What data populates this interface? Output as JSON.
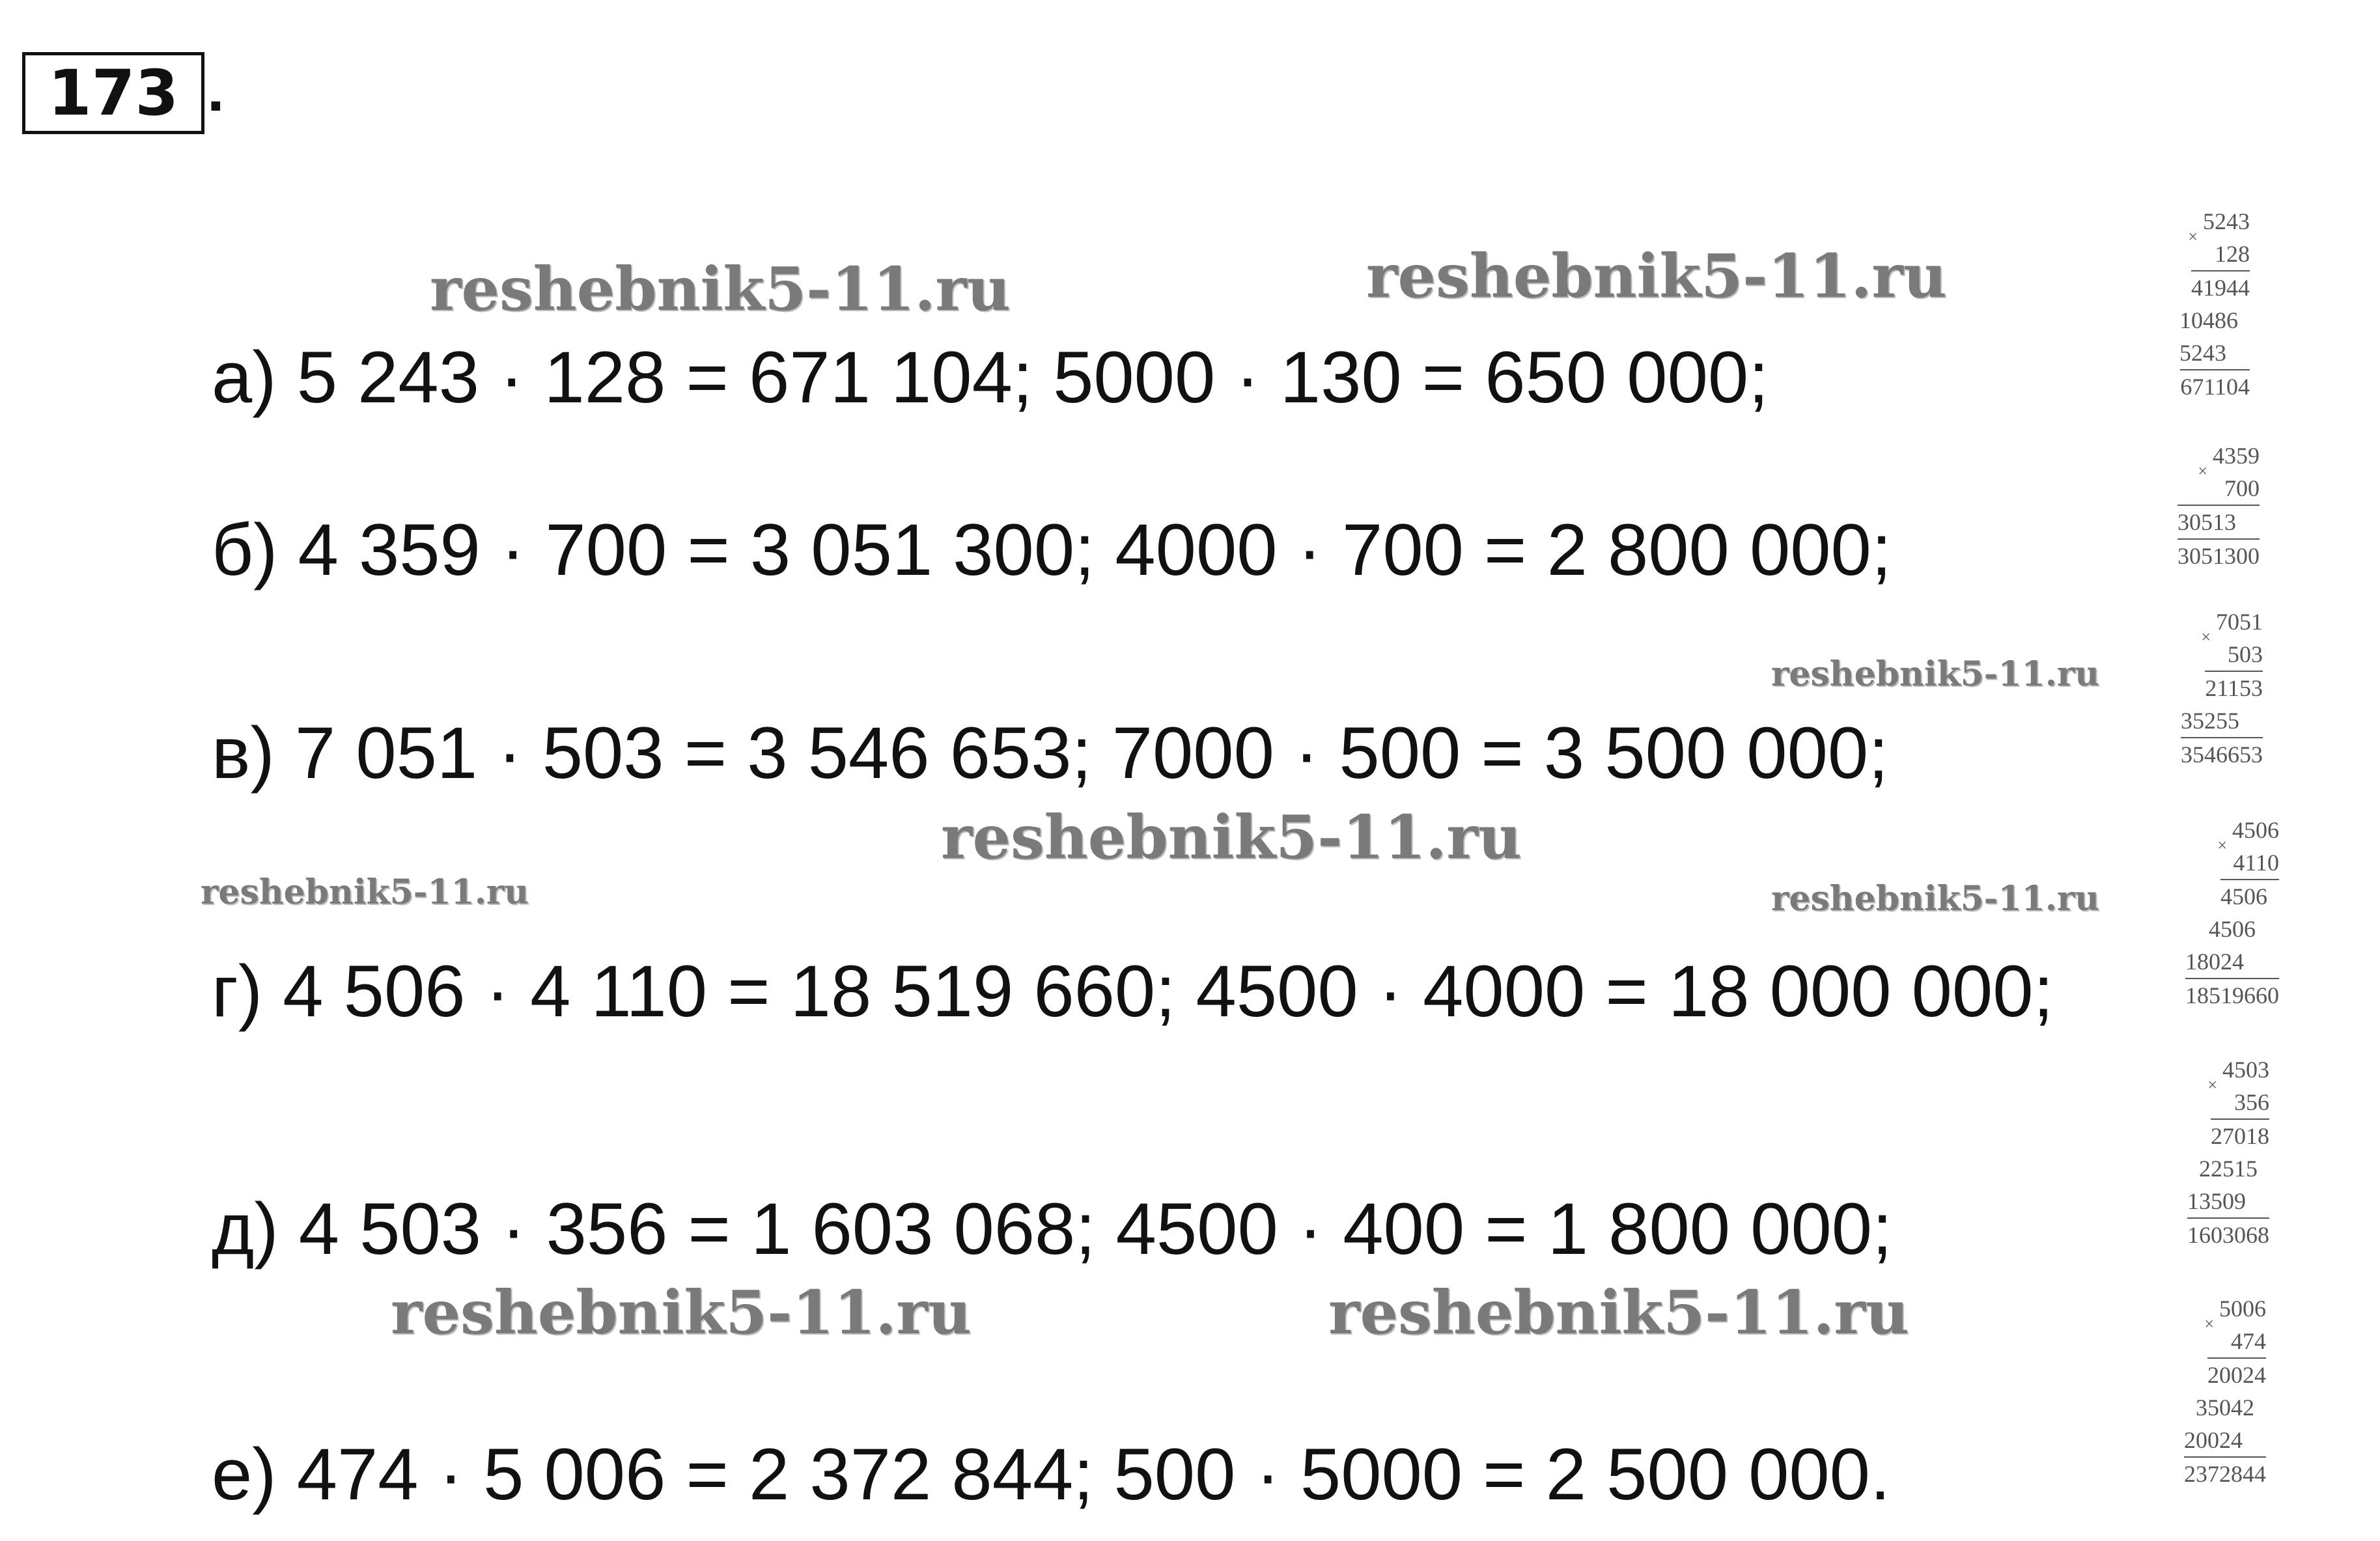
{
  "exercise_number": "173",
  "exercise_suffix": ".",
  "lines": [
    "а) 5 243 · 128 = 671 104; 5000 · 130 = 650 000;",
    "б) 4 359 · 700 = 3 051 300; 4000 · 700 = 2 800 000;",
    "в) 7 051 · 503 = 3 546 653; 7000 · 500 = 3 500 000;",
    "г) 4 506 · 4 110 = 18 519 660; 4500 · 4000 = 18 000 000;",
    "д) 4 503 · 356 = 1 603 068; 4500 · 400 = 1 800 000;",
    "е) 474 · 5 006 = 2 372 844; 500 · 5000 = 2 500 000."
  ],
  "watermark": "reshebnik5-11.ru",
  "multiply_sign": "×",
  "calcs": [
    {
      "factor1": "5243",
      "factor2": "128",
      "partials": [
        {
          "text": "41944",
          "shift": 0
        },
        {
          "text": "10486",
          "shift": 1
        },
        {
          "text": "5243",
          "shift": 2
        }
      ],
      "result": "671104"
    },
    {
      "factor1": "4359",
      "factor2": "700",
      "partials": [
        {
          "text": "30513",
          "shift": 2
        }
      ],
      "result": "3051300"
    },
    {
      "factor1": "7051",
      "factor2": "503",
      "partials": [
        {
          "text": "21153",
          "shift": 0
        },
        {
          "text": "35255",
          "shift": 2
        }
      ],
      "result": "3546653"
    },
    {
      "factor1": "4506",
      "factor2": "4110",
      "partials": [
        {
          "text": "4506",
          "shift": 1
        },
        {
          "text": "4506",
          "shift": 2
        },
        {
          "text": "18024",
          "shift": 3
        }
      ],
      "result": "18519660"
    },
    {
      "factor1": "4503",
      "factor2": "356",
      "partials": [
        {
          "text": "27018",
          "shift": 0
        },
        {
          "text": "22515",
          "shift": 1
        },
        {
          "text": "13509",
          "shift": 2
        }
      ],
      "result": "1603068"
    },
    {
      "factor1": "5006",
      "factor2": "474",
      "partials": [
        {
          "text": "20024",
          "shift": 0
        },
        {
          "text": "35042",
          "shift": 1
        },
        {
          "text": "20024",
          "shift": 2
        }
      ],
      "result": "2372844"
    }
  ]
}
